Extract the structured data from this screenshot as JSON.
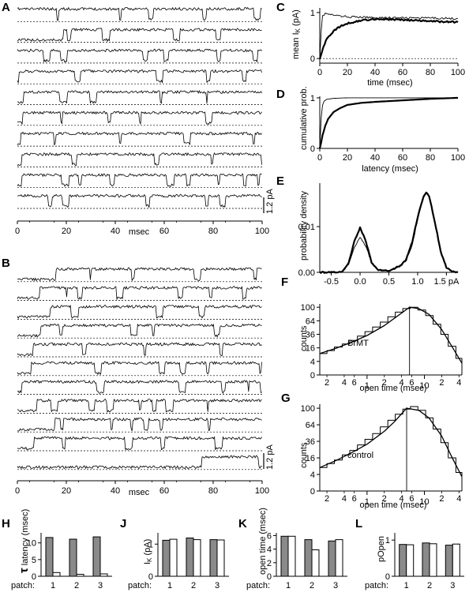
{
  "panels": {
    "A": {
      "letter": "A",
      "x_ticks": [
        "0",
        "20",
        "40",
        "60",
        "80",
        "100"
      ],
      "x_unit": "msec",
      "scale_label": "1.2 pA",
      "n_traces": 10
    },
    "B": {
      "letter": "B",
      "x_ticks": [
        "0",
        "20",
        "40",
        "60",
        "80",
        "100"
      ],
      "x_unit": "msec",
      "scale_label": "1.2 pA",
      "n_traces": 11
    },
    "C": {
      "letter": "C",
      "ylabel": "mean I",
      "ylabel_sub": "K",
      "ylabel_unit": " (pA)",
      "xlabel": "time (msec)",
      "y_ticks": [
        "0",
        "1"
      ],
      "x_ticks": [
        "0",
        "20",
        "40",
        "60",
        "80",
        "100"
      ]
    },
    "D": {
      "letter": "D",
      "ylabel": "cumulative prob.",
      "xlabel": "latency (msec)",
      "y_ticks": [
        "0",
        "1"
      ],
      "x_ticks": [
        "0",
        "20",
        "40",
        "60",
        "80",
        "100"
      ]
    },
    "E": {
      "letter": "E",
      "ylabel": "probability density",
      "x_ticks": [
        "-0.5",
        "0.0",
        "0.5",
        "1.0",
        "1.5 pA"
      ],
      "y_ticks": [
        "0.00",
        "0.01"
      ]
    },
    "F": {
      "letter": "F",
      "ylabel": "counts",
      "xlabel": "open time (msec)",
      "annotation": "BrMT",
      "y_ticks": [
        "100",
        "64",
        "36",
        "16",
        "4",
        "0"
      ],
      "x_minor": [
        "2",
        "4",
        "6",
        "2",
        "4",
        "6",
        "2",
        "4"
      ],
      "x_major": [
        "1",
        "10"
      ]
    },
    "G": {
      "letter": "G",
      "ylabel": "counts",
      "xlabel": "open time (msec)",
      "annotation": "control",
      "y_ticks": [
        "100",
        "64",
        "36",
        "16",
        "4",
        "0"
      ],
      "x_minor": [
        "2",
        "4",
        "6",
        "2",
        "4",
        "6",
        "2",
        "4"
      ],
      "x_major": [
        "1",
        "10"
      ]
    },
    "H": {
      "letter": "H",
      "ylabel_tau": "τ",
      "ylabel": " latency (msec)",
      "y_ticks": [
        "0",
        "5",
        "10"
      ],
      "patch_label": "patch:",
      "patches": [
        "1",
        "2",
        "3"
      ]
    },
    "J": {
      "letter": "J",
      "ylabel": "I",
      "ylabel_sub": "K",
      "ylabel_unit": " (pA)",
      "y_ticks": [
        "0",
        "1"
      ],
      "patch_label": "patch:",
      "patches": [
        "1",
        "2",
        "3"
      ]
    },
    "K": {
      "letter": "K",
      "ylabel": "open time (msec)",
      "y_ticks": [
        "0",
        "2",
        "4",
        "6"
      ],
      "patch_label": "patch:",
      "patches": [
        "1",
        "2",
        "3"
      ]
    },
    "L": {
      "letter": "L",
      "ylabel": "pOpen",
      "y_ticks": [
        "0",
        "1"
      ],
      "patch_label": "patch:",
      "patches": [
        "1",
        "2",
        "3"
      ]
    }
  },
  "chart_data": [
    {
      "id": "C",
      "type": "line",
      "xlim": [
        0,
        100
      ],
      "ylim": [
        -0.1,
        1.1
      ],
      "series": [
        {
          "style": "thin",
          "x": [
            0,
            1,
            2,
            4,
            8,
            15,
            25,
            40,
            60,
            80,
            100
          ],
          "y": [
            0,
            0.6,
            0.92,
            0.98,
            0.95,
            0.92,
            0.9,
            0.89,
            0.88,
            0.88,
            0.87
          ]
        },
        {
          "style": "thick",
          "x": [
            0,
            2,
            5,
            10,
            15,
            20,
            30,
            40,
            50,
            60,
            80,
            100
          ],
          "y": [
            0,
            0.2,
            0.42,
            0.6,
            0.7,
            0.76,
            0.83,
            0.86,
            0.85,
            0.84,
            0.81,
            0.79
          ]
        }
      ]
    },
    {
      "id": "D",
      "type": "line",
      "xlim": [
        0,
        100
      ],
      "ylim": [
        0,
        1
      ],
      "series": [
        {
          "style": "thin",
          "x": [
            0,
            0.5,
            1,
            2,
            3,
            5,
            10,
            20,
            40,
            100
          ],
          "y": [
            0,
            0.3,
            0.6,
            0.85,
            0.93,
            0.97,
            0.99,
            1,
            1,
            1
          ]
        },
        {
          "style": "thick",
          "x": [
            0,
            1,
            2,
            4,
            6,
            10,
            15,
            20,
            30,
            40,
            60,
            80,
            100
          ],
          "y": [
            0,
            0.12,
            0.26,
            0.45,
            0.58,
            0.72,
            0.8,
            0.86,
            0.9,
            0.92,
            0.95,
            0.98,
            1
          ]
        }
      ]
    },
    {
      "id": "E",
      "type": "line",
      "xlim": [
        -0.7,
        1.7
      ],
      "ylim": [
        0,
        0.019
      ],
      "series": [
        {
          "style": "thick",
          "x": [
            -0.7,
            -0.5,
            -0.3,
            -0.2,
            -0.1,
            0,
            0.1,
            0.2,
            0.3,
            0.4,
            0.5,
            0.7,
            0.8,
            0.9,
            1,
            1.1,
            1.15,
            1.2,
            1.3,
            1.4,
            1.5,
            1.6,
            1.7
          ],
          "y": [
            0,
            0,
            0.0002,
            0.002,
            0.0068,
            0.0098,
            0.0068,
            0.0022,
            0.0006,
            0.0003,
            0.0004,
            0.0014,
            0.0028,
            0.0062,
            0.012,
            0.0165,
            0.0175,
            0.0167,
            0.011,
            0.0045,
            0.001,
            0.0002,
            0
          ]
        },
        {
          "style": "thin",
          "x": [
            -0.7,
            -0.5,
            -0.3,
            -0.2,
            -0.1,
            0,
            0.1,
            0.2,
            0.3,
            0.4,
            0.5,
            0.7,
            0.8,
            0.9,
            1,
            1.1,
            1.15,
            1.2,
            1.3,
            1.4,
            1.5,
            1.6,
            1.7
          ],
          "y": [
            0,
            0,
            0.0002,
            0.0018,
            0.0055,
            0.0078,
            0.0057,
            0.002,
            0.0006,
            0.0003,
            0.0004,
            0.0014,
            0.003,
            0.0068,
            0.0125,
            0.0168,
            0.0177,
            0.0168,
            0.0112,
            0.0047,
            0.0011,
            0.0002,
            0
          ]
        }
      ]
    },
    {
      "id": "F",
      "type": "bar",
      "x_scale": "log",
      "xlim": [
        0.15,
        45
      ],
      "vline": 5.5,
      "bins": [
        [
          0.15,
          0.2
        ],
        [
          0.2,
          0.27
        ],
        [
          0.27,
          0.37
        ],
        [
          0.37,
          0.5
        ],
        [
          0.5,
          0.68
        ],
        [
          0.68,
          0.92
        ],
        [
          0.92,
          1.25
        ],
        [
          1.25,
          1.7
        ],
        [
          1.7,
          2.3
        ],
        [
          2.3,
          3.1
        ],
        [
          3.1,
          4.2
        ],
        [
          4.2,
          5.7
        ],
        [
          5.7,
          7.7
        ],
        [
          7.7,
          10.5
        ],
        [
          10.5,
          14.2
        ],
        [
          14.2,
          19.3
        ],
        [
          19.3,
          26
        ],
        [
          26,
          35.4
        ],
        [
          35.4,
          45
        ]
      ],
      "counts": [
        10,
        13,
        17,
        21,
        26,
        33,
        41,
        50,
        61,
        74,
        86,
        96,
        100,
        92,
        77,
        56,
        36,
        18,
        6
      ],
      "fit": {
        "x": [
          0.15,
          0.3,
          0.6,
          1,
          2,
          3,
          5,
          5.5,
          8,
          12,
          20,
          30,
          45
        ],
        "y": [
          10,
          16,
          25,
          34,
          53,
          70,
          95,
          100,
          96,
          80,
          45,
          18,
          3
        ]
      }
    },
    {
      "id": "G",
      "type": "bar",
      "x_scale": "log",
      "xlim": [
        0.15,
        45
      ],
      "vline": 4.9,
      "bins": [
        [
          0.15,
          0.2
        ],
        [
          0.2,
          0.27
        ],
        [
          0.27,
          0.37
        ],
        [
          0.37,
          0.5
        ],
        [
          0.5,
          0.68
        ],
        [
          0.68,
          0.92
        ],
        [
          0.92,
          1.25
        ],
        [
          1.25,
          1.7
        ],
        [
          1.7,
          2.3
        ],
        [
          2.3,
          3.1
        ],
        [
          3.1,
          4.2
        ],
        [
          4.2,
          5.7
        ],
        [
          5.7,
          7.7
        ],
        [
          7.7,
          10.5
        ],
        [
          10.5,
          14.2
        ],
        [
          14.2,
          19.3
        ],
        [
          19.3,
          26
        ],
        [
          26,
          35.4
        ],
        [
          35.4,
          45
        ]
      ],
      "counts": [
        8,
        11,
        14,
        19,
        24,
        31,
        39,
        48,
        60,
        73,
        86,
        98,
        104,
        95,
        78,
        56,
        34,
        16,
        5
      ],
      "fit": {
        "x": [
          0.15,
          0.3,
          0.6,
          1,
          2,
          3,
          4.9,
          8,
          12,
          20,
          30,
          45
        ],
        "y": [
          8,
          14,
          23,
          32,
          52,
          70,
          100,
          95,
          78,
          44,
          17,
          3
        ]
      }
    },
    {
      "id": "H",
      "type": "bar",
      "ylim": [
        0,
        13
      ],
      "categories": [
        "1",
        "2",
        "3"
      ],
      "series": [
        {
          "fill": "gray",
          "values": [
            11.6,
            11.1,
            11.8
          ]
        },
        {
          "fill": "white",
          "values": [
            1.1,
            0.6,
            0.7
          ]
        }
      ]
    },
    {
      "id": "J",
      "type": "bar",
      "ylim": [
        0,
        1.35
      ],
      "categories": [
        "1",
        "2",
        "3"
      ],
      "series": [
        {
          "fill": "gray",
          "values": [
            1.12,
            1.19,
            1.14
          ]
        },
        {
          "fill": "white",
          "values": [
            1.15,
            1.14,
            1.13
          ]
        }
      ]
    },
    {
      "id": "K",
      "type": "bar",
      "ylim": [
        0,
        6.4
      ],
      "categories": [
        "1",
        "2",
        "3"
      ],
      "series": [
        {
          "fill": "gray",
          "values": [
            5.9,
            5.4,
            5.2
          ]
        },
        {
          "fill": "white",
          "values": [
            5.9,
            3.9,
            5.4
          ]
        }
      ]
    },
    {
      "id": "L",
      "type": "bar",
      "ylim": [
        0,
        1.2
      ],
      "categories": [
        "1",
        "2",
        "3"
      ],
      "series": [
        {
          "fill": "gray",
          "values": [
            0.88,
            0.92,
            0.86
          ]
        },
        {
          "fill": "white",
          "values": [
            0.87,
            0.9,
            0.89
          ]
        }
      ]
    }
  ]
}
